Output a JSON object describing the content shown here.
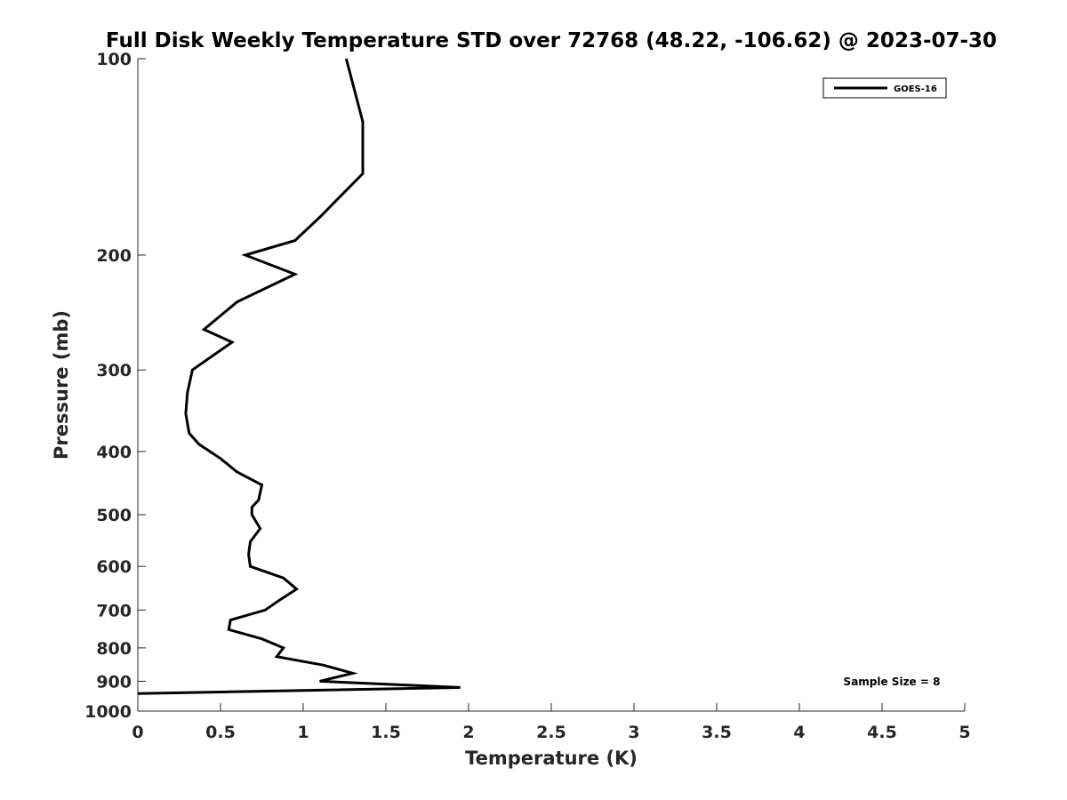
{
  "chart_data": {
    "type": "line",
    "title": "Full Disk Weekly Temperature STD over 72768 (48.22, -106.62) @ 2023-07-30",
    "xlabel": "Temperature (K)",
    "ylabel": "Pressure (mb)",
    "xlim": [
      0,
      5
    ],
    "ylim": [
      1000,
      100
    ],
    "yscale": "log",
    "xticks": [
      0,
      0.5,
      1,
      1.5,
      2,
      2.5,
      3,
      3.5,
      4,
      4.5,
      5
    ],
    "xtick_labels": [
      "0",
      "0.5",
      "1",
      "1.5",
      "2",
      "2.5",
      "3",
      "3.5",
      "4",
      "4.5",
      "5"
    ],
    "yticks": [
      100,
      200,
      300,
      400,
      500,
      600,
      700,
      800,
      900,
      1000
    ],
    "ytick_labels": [
      "100",
      "200",
      "300",
      "400",
      "500",
      "600",
      "700",
      "800",
      "900",
      "1000"
    ],
    "grid": false,
    "legend_position": "top-right",
    "series": [
      {
        "name": "GOES-16",
        "color": "#000000",
        "x": [
          1.26,
          1.36,
          1.36,
          1.1,
          0.95,
          0.65,
          0.95,
          0.6,
          0.4,
          0.57,
          0.33,
          0.3,
          0.29,
          0.31,
          0.37,
          0.5,
          0.6,
          0.75,
          0.73,
          0.69,
          0.69,
          0.74,
          0.68,
          0.67,
          0.68,
          0.88,
          0.96,
          0.86,
          0.77,
          0.56,
          0.55,
          0.75,
          0.88,
          0.84,
          1.12,
          1.3,
          1.1,
          1.95,
          0.0
        ],
        "y": [
          100,
          125,
          150,
          175,
          190,
          200,
          214,
          236,
          260,
          272,
          300,
          325,
          350,
          375,
          390,
          410,
          430,
          450,
          475,
          487,
          500,
          525,
          550,
          575,
          600,
          625,
          650,
          675,
          700,
          725,
          750,
          775,
          800,
          825,
          850,
          875,
          900,
          920,
          940
        ]
      }
    ],
    "annotation": "Sample Size = 8"
  }
}
